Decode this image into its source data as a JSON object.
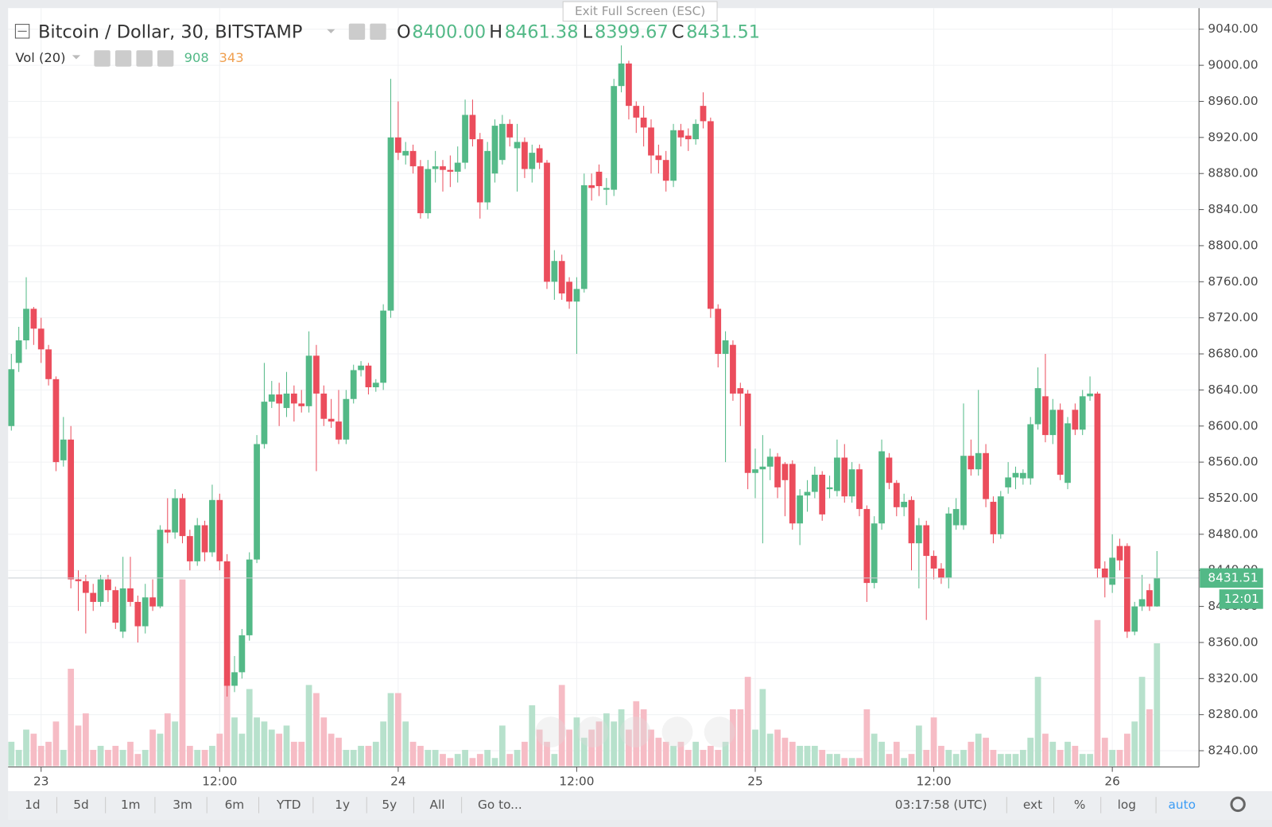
{
  "header": {
    "title": "Bitcoin / Dollar, 30, BITSTAMP",
    "o_label": "O",
    "o": "8400.00",
    "h_label": "H",
    "h": "8461.38",
    "l_label": "L",
    "l": "8399.67",
    "c_label": "C",
    "c": "8431.51",
    "vol_label": "Vol (20)",
    "vol": "908",
    "vol_ma": "343",
    "exit": "Exit Full Screen (ESC)"
  },
  "price_label": "8431.51",
  "countdown": "12:01",
  "toolbar": {
    "ranges": [
      "1d",
      "5d",
      "1m",
      "3m",
      "6m",
      "YTD",
      "1y",
      "5y",
      "All",
      "Go to..."
    ],
    "time": "03:17:58 (UTC)",
    "options": [
      "ext",
      "%",
      "log",
      "auto"
    ]
  },
  "chart_data": {
    "type": "candlestick",
    "up_color": "#53b987",
    "down_color": "#eb4d5c",
    "up_volume_color": "#b7e1cc",
    "down_volume_color": "#f6bcc5",
    "ylim": [
      8240,
      9040
    ],
    "yticks": [
      {
        "value": 8240,
        "label": "8240.00"
      },
      {
        "value": 8280,
        "label": "8280.00"
      },
      {
        "value": 8320,
        "label": "8320.00"
      },
      {
        "value": 8360,
        "label": "8360.00"
      },
      {
        "value": 8400,
        "label": "8400.00"
      },
      {
        "value": 8440,
        "label": "8440.00"
      },
      {
        "value": 8480,
        "label": "8480.00"
      },
      {
        "value": 8520,
        "label": "8520.00"
      },
      {
        "value": 8560,
        "label": "8560.00"
      },
      {
        "value": 8600,
        "label": "8600.00"
      },
      {
        "value": 8640,
        "label": "8640.00"
      },
      {
        "value": 8680,
        "label": "8680.00"
      },
      {
        "value": 8720,
        "label": "8720.00"
      },
      {
        "value": 8760,
        "label": "8760.00"
      },
      {
        "value": 8800,
        "label": "8800.00"
      },
      {
        "value": 8840,
        "label": "8840.00"
      },
      {
        "value": 8880,
        "label": "8880.00"
      },
      {
        "value": 8920,
        "label": "8920.00"
      },
      {
        "value": 8960,
        "label": "8960.00"
      },
      {
        "value": 9000,
        "label": "9000.00"
      },
      {
        "value": 9040,
        "label": "9040.00"
      }
    ],
    "xticks": [
      {
        "value": 4,
        "label": "23"
      },
      {
        "value": 28,
        "label": "12:00"
      },
      {
        "value": 52,
        "label": "24"
      },
      {
        "value": 76,
        "label": "12:00"
      },
      {
        "value": 100,
        "label": "25"
      },
      {
        "value": 124,
        "label": "12:00"
      },
      {
        "value": 148,
        "label": "26"
      }
    ],
    "open": [
      8600,
      8670,
      8695,
      8730,
      8708,
      8685,
      8652,
      8562,
      8585,
      8430,
      8428,
      8415,
      8405,
      8430,
      8418,
      8372,
      8420,
      8405,
      8378,
      8410,
      8400,
      8485,
      8482,
      8520,
      8478,
      8450,
      8490,
      8460,
      8518,
      8450,
      8312,
      8327,
      8368,
      8452,
      8580,
      8627,
      8635,
      8620,
      8636,
      8625,
      8622,
      8678,
      8636,
      8608,
      8605,
      8585,
      8630,
      8662,
      8667,
      8643,
      8648,
      8728,
      8920,
      8900,
      8905,
      8888,
      8836,
      8885,
      8888,
      8884,
      8882,
      8892,
      8945,
      8918,
      8848,
      8880,
      8895,
      8935,
      8908,
      8915,
      8885,
      8908,
      8892,
      8760,
      8783,
      8760,
      8738,
      8752,
      8867,
      8882,
      8862,
      8862,
      8977,
      9002,
      8955,
      8942,
      8931,
      8900,
      8895,
      8872,
      8928,
      8922,
      8918,
      8955,
      8938,
      8730,
      8680,
      8690,
      8642,
      8636,
      8548,
      8552,
      8555,
      8566,
      8558,
      8558,
      8492,
      8523,
      8527,
      8546,
      8530,
      8528,
      8565,
      8522,
      8552,
      8508,
      8426,
      8492,
      8565,
      8537,
      8510,
      8518,
      8470,
      8490,
      8456,
      8442,
      8432,
      8490,
      8490,
      8567,
      8552,
      8570,
      8516,
      8480,
      8532,
      8543,
      8542,
      8542,
      8602,
      8633,
      8590,
      8618,
      8537,
      8618,
      8596,
      8633,
      8636,
      8442,
      8424,
      8467,
      8467,
      8372,
      8400,
      8418,
      8400
    ],
    "high": [
      8680,
      8710,
      8765,
      8732,
      8720,
      8690,
      8655,
      8610,
      8600,
      8440,
      8435,
      8425,
      8435,
      8435,
      8422,
      8455,
      8455,
      8412,
      8425,
      8430,
      8490,
      8520,
      8530,
      8525,
      8485,
      8498,
      8495,
      8535,
      8525,
      8458,
      8345,
      8375,
      8460,
      8590,
      8670,
      8650,
      8648,
      8660,
      8645,
      8640,
      8705,
      8690,
      8645,
      8630,
      8640,
      8640,
      8668,
      8672,
      8670,
      8652,
      8735,
      8985,
      8960,
      8915,
      8912,
      8895,
      8895,
      8905,
      8895,
      8900,
      8910,
      8962,
      8962,
      8925,
      8915,
      8940,
      8945,
      8940,
      8935,
      8920,
      8912,
      8912,
      8895,
      8795,
      8790,
      8765,
      8765,
      8880,
      8880,
      8890,
      8875,
      8985,
      9022,
      9005,
      8960,
      8955,
      8940,
      8912,
      8905,
      8935,
      8935,
      8930,
      8940,
      8970,
      8942,
      8735,
      8705,
      8695,
      8648,
      8640,
      8575,
      8590,
      8575,
      8570,
      8560,
      8562,
      8530,
      8540,
      8555,
      8550,
      8545,
      8585,
      8580,
      8560,
      8558,
      8512,
      8500,
      8585,
      8570,
      8540,
      8525,
      8522,
      8498,
      8495,
      8462,
      8448,
      8510,
      8520,
      8625,
      8585,
      8640,
      8580,
      8522,
      8528,
      8560,
      8555,
      8552,
      8610,
      8665,
      8680,
      8630,
      8625,
      8610,
      8625,
      8640,
      8655,
      8638,
      8450,
      8480,
      8475,
      8470,
      8405,
      8435,
      8425,
      8461.38
    ],
    "low": [
      8595,
      8660,
      8685,
      8690,
      8670,
      8645,
      8550,
      8555,
      8420,
      8395,
      8370,
      8395,
      8400,
      8405,
      8375,
      8365,
      8400,
      8360,
      8370,
      8395,
      8398,
      8470,
      8475,
      8470,
      8440,
      8445,
      8450,
      8455,
      8440,
      8300,
      8305,
      8320,
      8362,
      8448,
      8575,
      8620,
      8600,
      8610,
      8605,
      8615,
      8615,
      8550,
      8600,
      8598,
      8580,
      8580,
      8625,
      8655,
      8635,
      8638,
      8640,
      8720,
      8895,
      8890,
      8880,
      8830,
      8830,
      8870,
      8860,
      8865,
      8870,
      8885,
      8910,
      8830,
      8840,
      8870,
      8890,
      8910,
      8860,
      8875,
      8870,
      8885,
      8752,
      8740,
      8740,
      8730,
      8680,
      8748,
      8850,
      8855,
      8845,
      8855,
      8970,
      8940,
      8925,
      8910,
      8880,
      8880,
      8860,
      8865,
      8910,
      8905,
      8912,
      8930,
      8720,
      8665,
      8560,
      8628,
      8600,
      8530,
      8520,
      8470,
      8540,
      8520,
      8500,
      8485,
      8468,
      8505,
      8520,
      8495,
      8520,
      8522,
      8515,
      8515,
      8500,
      8405,
      8420,
      8485,
      8530,
      8500,
      8500,
      8440,
      8420,
      8385,
      8430,
      8425,
      8420,
      8485,
      8485,
      8545,
      8545,
      8510,
      8470,
      8475,
      8525,
      8530,
      8535,
      8535,
      8596,
      8582,
      8580,
      8540,
      8530,
      8590,
      8590,
      8628,
      8432,
      8410,
      8415,
      8440,
      8365,
      8368,
      8395,
      8395,
      8399.67
    ],
    "close": [
      8663,
      8695,
      8730,
      8708,
      8685,
      8652,
      8560,
      8585,
      8430,
      8428,
      8415,
      8405,
      8430,
      8418,
      8382,
      8420,
      8405,
      8378,
      8410,
      8400,
      8485,
      8482,
      8520,
      8478,
      8450,
      8490,
      8460,
      8518,
      8450,
      8312,
      8327,
      8368,
      8452,
      8580,
      8627,
      8635,
      8625,
      8636,
      8625,
      8622,
      8678,
      8636,
      8608,
      8605,
      8585,
      8630,
      8662,
      8667,
      8643,
      8648,
      8728,
      8920,
      8903,
      8905,
      8888,
      8836,
      8885,
      8888,
      8884,
      8882,
      8892,
      8945,
      8918,
      8848,
      8905,
      8933,
      8935,
      8920,
      8915,
      8885,
      8903,
      8892,
      8760,
      8783,
      8747,
      8738,
      8752,
      8867,
      8864,
      8866,
      8864,
      8977,
      9002,
      8955,
      8942,
      8931,
      8900,
      8895,
      8872,
      8928,
      8920,
      8918,
      8935,
      8938,
      8730,
      8680,
      8695,
      8636,
      8636,
      8548,
      8552,
      8555,
      8566,
      8532,
      8540,
      8492,
      8523,
      8527,
      8546,
      8502,
      8532,
      8565,
      8522,
      8552,
      8508,
      8426,
      8492,
      8572,
      8537,
      8510,
      8516,
      8470,
      8490,
      8456,
      8442,
      8432,
      8503,
      8508,
      8567,
      8552,
      8570,
      8519,
      8480,
      8522,
      8543,
      8548,
      8548,
      8602,
      8642,
      8590,
      8618,
      8546,
      8603,
      8596,
      8633,
      8636,
      8442,
      8432,
      8454,
      8451,
      8372,
      8400,
      8408,
      8400,
      8431.51
    ],
    "volume": [
      180,
      120,
      270,
      240,
      150,
      180,
      330,
      120,
      720,
      300,
      390,
      120,
      150,
      120,
      150,
      120,
      180,
      90,
      120,
      270,
      240,
      390,
      330,
      1380,
      150,
      120,
      120,
      150,
      240,
      600,
      360,
      240,
      570,
      360,
      330,
      270,
      240,
      300,
      180,
      180,
      600,
      540,
      360,
      240,
      210,
      120,
      120,
      150,
      150,
      180,
      330,
      540,
      540,
      330,
      180,
      150,
      120,
      120,
      90,
      60,
      90,
      120,
      60,
      90,
      120,
      60,
      300,
      90,
      120,
      180,
      450,
      270,
      180,
      90,
      600,
      270,
      360,
      210,
      270,
      330,
      390,
      330,
      420,
      270,
      480,
      420,
      270,
      210,
      180,
      150,
      180,
      120,
      180,
      120,
      150,
      120,
      180,
      420,
      420,
      660,
      270,
      570,
      240,
      270,
      210,
      180,
      150,
      150,
      150,
      120,
      90,
      90,
      60,
      60,
      60,
      420,
      240,
      180,
      90,
      180,
      60,
      90,
      300,
      120,
      360,
      150,
      120,
      90,
      120,
      180,
      240,
      210,
      120,
      90,
      90,
      90,
      120,
      210,
      660,
      240,
      180,
      120,
      180,
      150,
      90,
      90,
      1080,
      210,
      120,
      120,
      240,
      330,
      660,
      420,
      908
    ]
  }
}
